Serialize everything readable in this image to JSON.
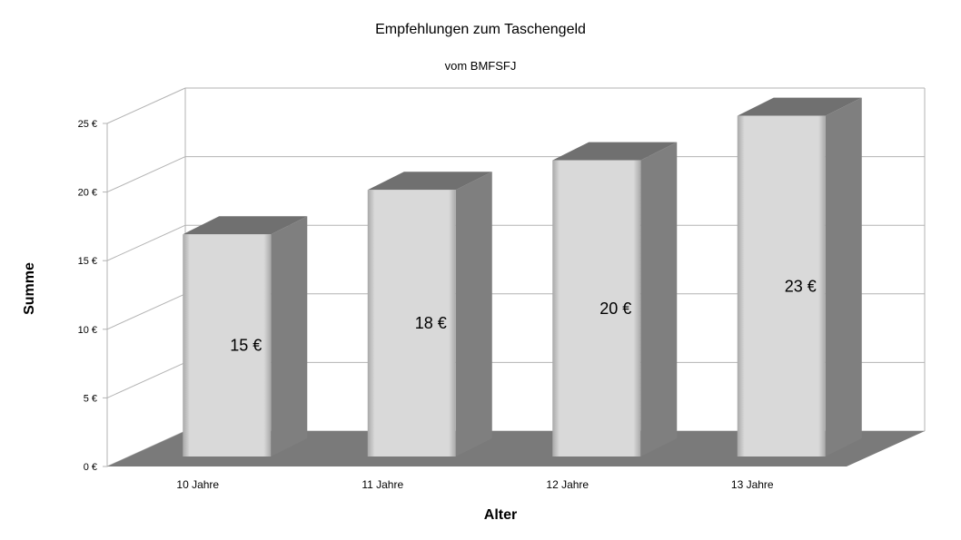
{
  "chart_data": {
    "type": "bar",
    "title": "Empfehlungen zum Taschengeld",
    "subtitle": "vom BMFSFJ",
    "xlabel": "Alter",
    "ylabel": "Summe",
    "categories": [
      "10 Jahre",
      "11 Jahre",
      "12 Jahre",
      "13 Jahre"
    ],
    "values": [
      15,
      18,
      20,
      23
    ],
    "data_labels": [
      "15 €",
      "18 €",
      "20 €",
      "23 €"
    ],
    "ylim": [
      0,
      25
    ],
    "yticks": [
      0,
      5,
      10,
      15,
      20,
      25
    ],
    "ytick_labels": [
      "0 €",
      "5 €",
      "10 €",
      "15 €",
      "20 €",
      "25 €"
    ],
    "grid": true,
    "legend": "none",
    "style": "3d",
    "colors": {
      "bar_front": "#d9d9d9",
      "bar_side": "#7f7f7f",
      "bar_top": "#707070",
      "floor": "#7a7a7a",
      "grid": "#b3b3b3"
    }
  }
}
